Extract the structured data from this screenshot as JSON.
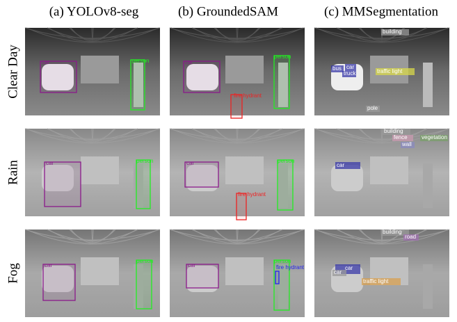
{
  "header": {
    "columns": [
      "(a) YOLOv8-seg",
      "(b) GroundedSAM",
      "(c) MMSegmentation"
    ]
  },
  "rows": [
    {
      "label": "Clear Day",
      "cells": [
        {
          "annotations": [
            {
              "text": "car",
              "color": "#8b1a8b"
            },
            {
              "text": "person",
              "color": "#22ee22"
            }
          ]
        },
        {
          "annotations": [
            {
              "text": "car",
              "color": "#8b1a8b"
            },
            {
              "text": "person",
              "color": "#22ee22"
            },
            {
              "text": "fire hydrant",
              "color": "#ee2222"
            }
          ]
        },
        {
          "annotations": [
            {
              "text": "building",
              "color": "#9a9a9a"
            },
            {
              "text": "bus",
              "color": "#3a3aa8"
            },
            {
              "text": "car",
              "color": "#3a3aa8"
            },
            {
              "text": "truck",
              "color": "#3a3aa8"
            },
            {
              "text": "traffic light",
              "color": "#d8d84a"
            },
            {
              "text": "pole",
              "color": "#9a9a9a"
            }
          ]
        }
      ]
    },
    {
      "label": "Rain",
      "cells": [
        {
          "annotations": [
            {
              "text": "car",
              "color": "#8b1a8b"
            },
            {
              "text": "person",
              "color": "#22ee22"
            }
          ]
        },
        {
          "annotations": [
            {
              "text": "car",
              "color": "#8b1a8b"
            },
            {
              "text": "person",
              "color": "#22ee22"
            },
            {
              "text": "fire hydrant",
              "color": "#ee2222"
            }
          ]
        },
        {
          "annotations": [
            {
              "text": "building",
              "color": "#9a9a9a"
            },
            {
              "text": "fence",
              "color": "#c99ab0"
            },
            {
              "text": "vegetation",
              "color": "#7aa06a"
            },
            {
              "text": "wall",
              "color": "#8a8ac0"
            },
            {
              "text": "car",
              "color": "#3a3aa8"
            }
          ]
        }
      ]
    },
    {
      "label": "Fog",
      "cells": [
        {
          "annotations": [
            {
              "text": "car",
              "color": "#8b1a8b"
            },
            {
              "text": "person",
              "color": "#22ee22"
            }
          ]
        },
        {
          "annotations": [
            {
              "text": "car",
              "color": "#8b1a8b"
            },
            {
              "text": "person",
              "color": "#22ee22"
            },
            {
              "text": "fire hydrant",
              "color": "#2222ee"
            }
          ]
        },
        {
          "annotations": [
            {
              "text": "building",
              "color": "#9a9a9a"
            },
            {
              "text": "road",
              "color": "#a070b0"
            },
            {
              "text": "car",
              "color": "#3a3aa8"
            },
            {
              "text": "car",
              "color": "#9a9a9a"
            },
            {
              "text": "traffic light",
              "color": "#d8a050"
            }
          ]
        }
      ]
    }
  ]
}
